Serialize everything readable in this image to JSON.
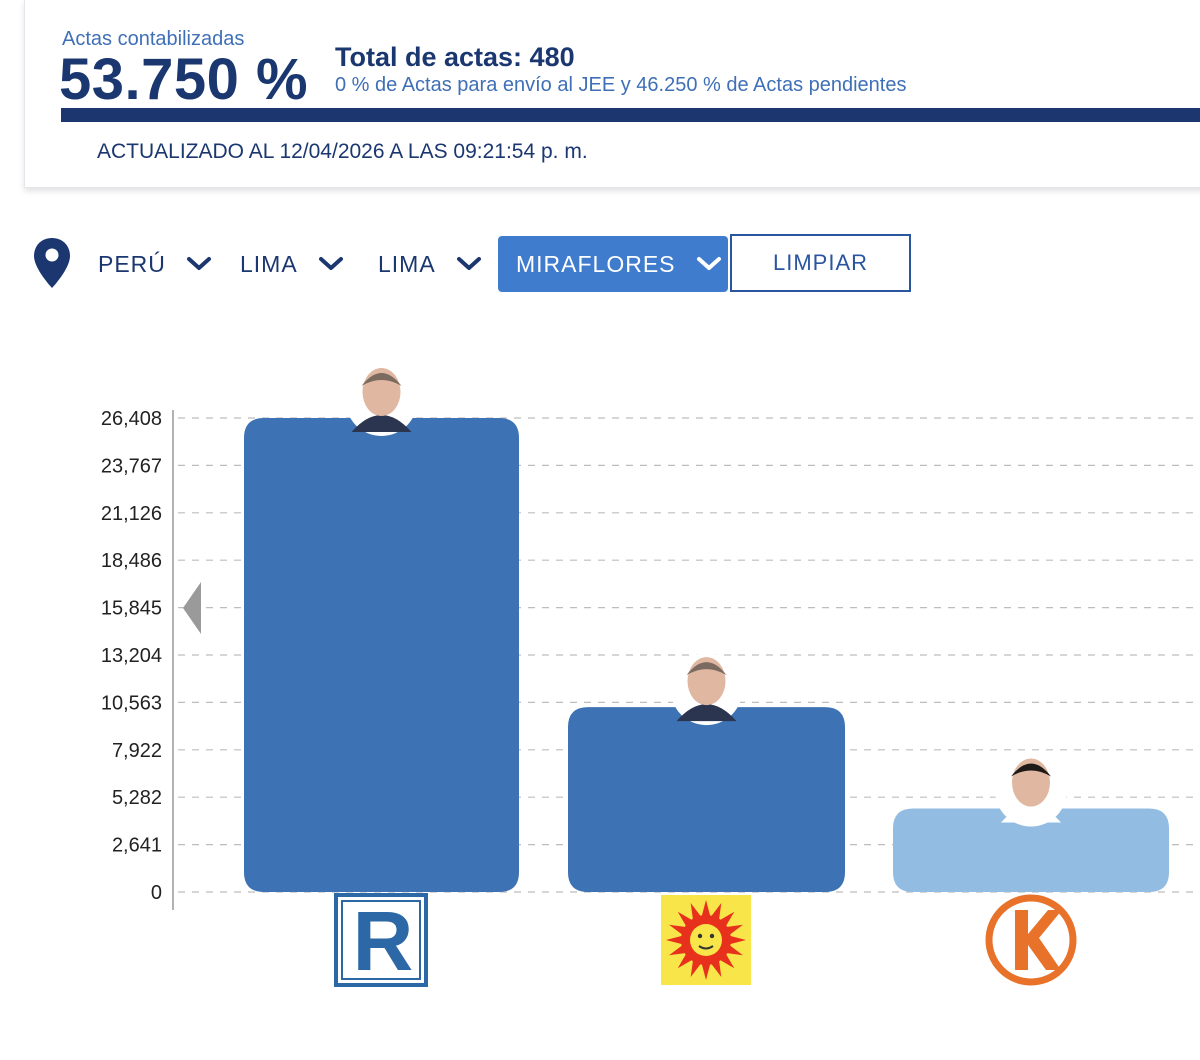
{
  "header": {
    "actas_label": "Actas contabilizadas",
    "actas_percent": "53.750 %",
    "total_actas": "Total de actas: 480",
    "subtitle": "0 % de Actas para envío al JEE y 46.250 % de Actas pendientes",
    "updated": "ACTUALIZADO AL 12/04/2026 A LAS 09:21:54 p. m."
  },
  "filters": {
    "location_icon": "map-pin-icon",
    "items": [
      {
        "label": "PERÚ"
      },
      {
        "label": "LIMA"
      },
      {
        "label": "LIMA"
      },
      {
        "label": "MIRAFLORES",
        "selected": true
      }
    ],
    "clear_label": "LIMPIAR"
  },
  "colors": {
    "primary": "#1c3770",
    "accent": "#3f7cce",
    "bar_dark": "#3d72b5",
    "bar_light": "#93bce3"
  },
  "chart_data": {
    "type": "bar",
    "title": "",
    "xlabel": "",
    "ylabel": "",
    "ylim": [
      0,
      26408
    ],
    "yticks": [
      "0",
      "2,641",
      "5,282",
      "7,922",
      "10,563",
      "13,204",
      "15,845",
      "18,486",
      "21,126",
      "23,767",
      "26,408"
    ],
    "grid": true,
    "categories": [
      "Renovación Popular",
      "Partido Político Perú Primero",
      "Fuerza Popular"
    ],
    "values": [
      26408,
      10300,
      4650
    ],
    "bar_colors": [
      "#3d72b5",
      "#3d72b5",
      "#93bce3"
    ],
    "logos": [
      "renovacion-popular-logo",
      "sun-party-logo",
      "fuerza-popular-logo"
    ],
    "photos": [
      "candidate-photo",
      "candidate-photo",
      "candidate-photo"
    ]
  }
}
